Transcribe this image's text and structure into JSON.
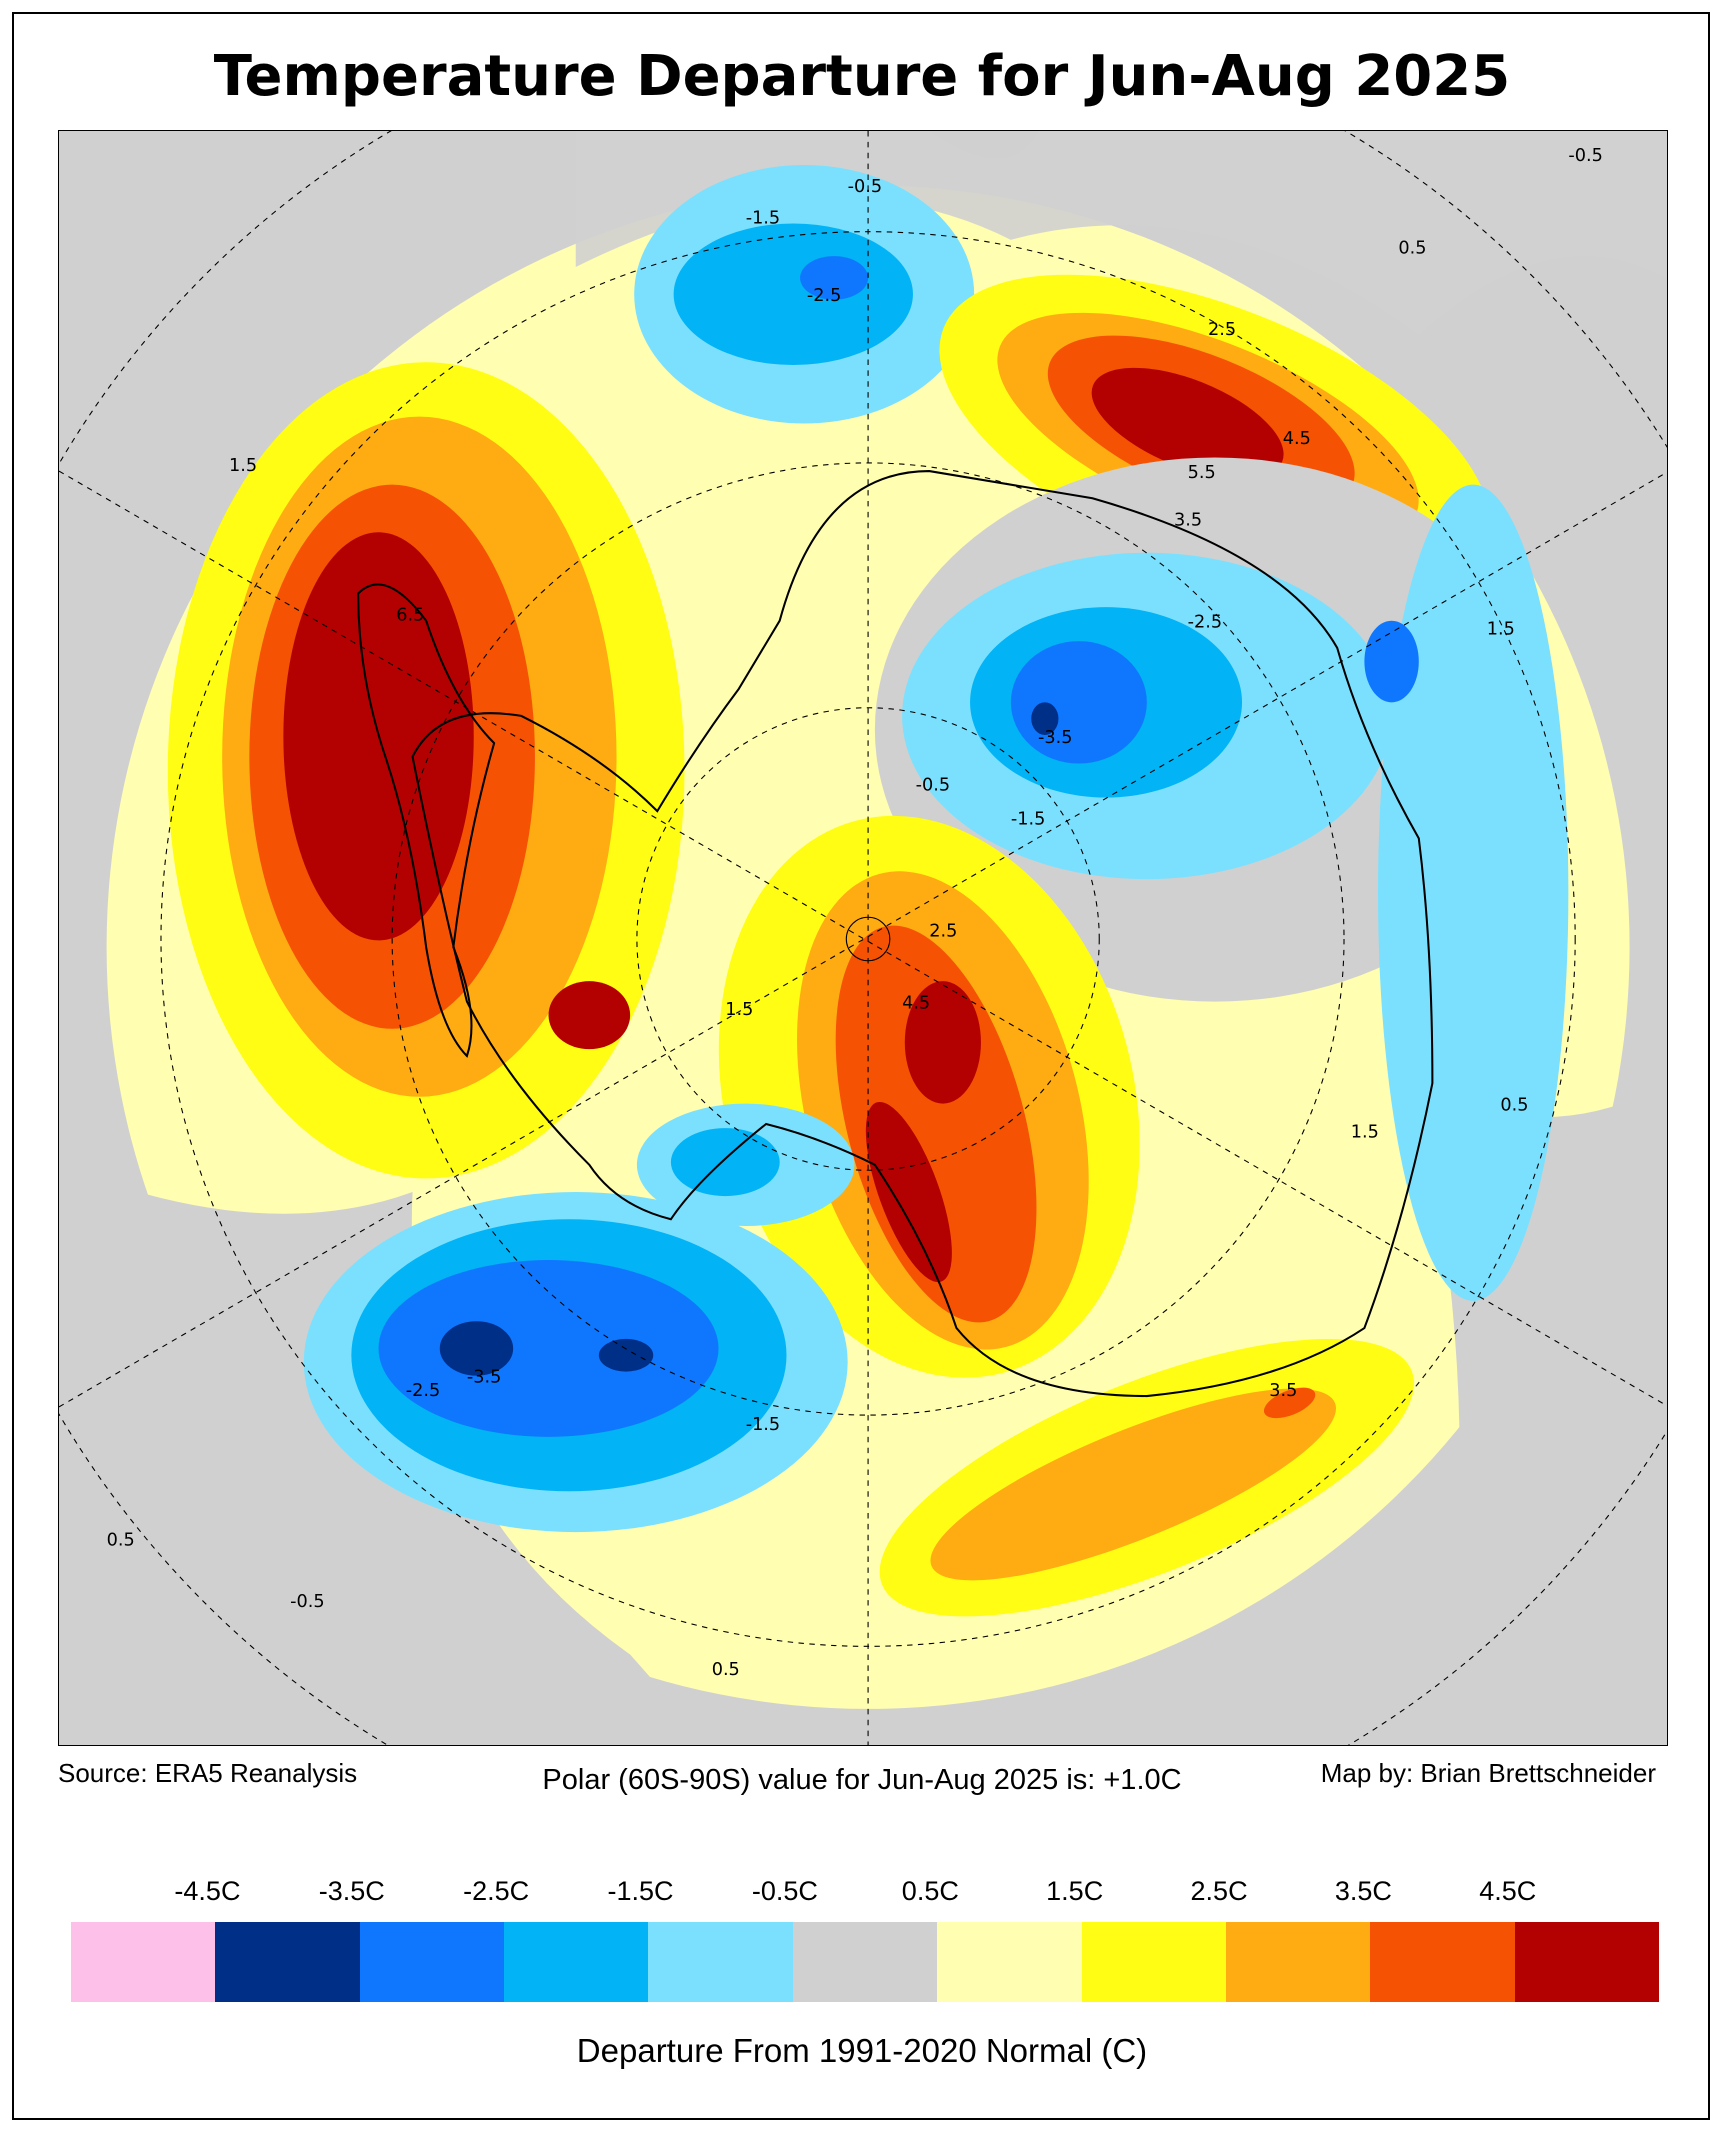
{
  "title": "Temperature Departure for Jun-Aug 2025",
  "footer": {
    "source": "Source: ERA5 Reanalysis",
    "polar_value": "Polar (60S-90S) value for Jun-Aug 2025 is: +1.0C",
    "credit": "Map by: Brian Brettschneider"
  },
  "colorbar": {
    "labels": [
      "-4.5C",
      "-3.5C",
      "-2.5C",
      "-1.5C",
      "-0.5C",
      "0.5C",
      "1.5C",
      "2.5C",
      "3.5C",
      "4.5C"
    ],
    "colors": [
      "#fdc0e8",
      "#002f87",
      "#0f77fe",
      "#02b3f5",
      "#7be0fd",
      "#d0d0d0",
      "#fffeb1",
      "#fffd13",
      "#feac11",
      "#f55203",
      "#b30000"
    ],
    "axis_label": "Departure From 1991-2020 Normal (C)"
  },
  "map": {
    "projection": "south-polar-stereographic",
    "contour_labels": [
      "-0.5",
      "0.5",
      "-1.5",
      "-2.5",
      "2.5",
      "3.5",
      "4.5",
      "5.5",
      "1.5",
      "6.5",
      "-3.5",
      "1.5",
      "0.5",
      "-0.5",
      "-2.5",
      "-1.5",
      "2.5",
      "4.5",
      "1.5",
      "-3.5",
      "-2.5",
      "-1.5",
      "0.5",
      "-0.5",
      "3.5",
      "0.5",
      "1.5",
      "-0.5"
    ]
  }
}
